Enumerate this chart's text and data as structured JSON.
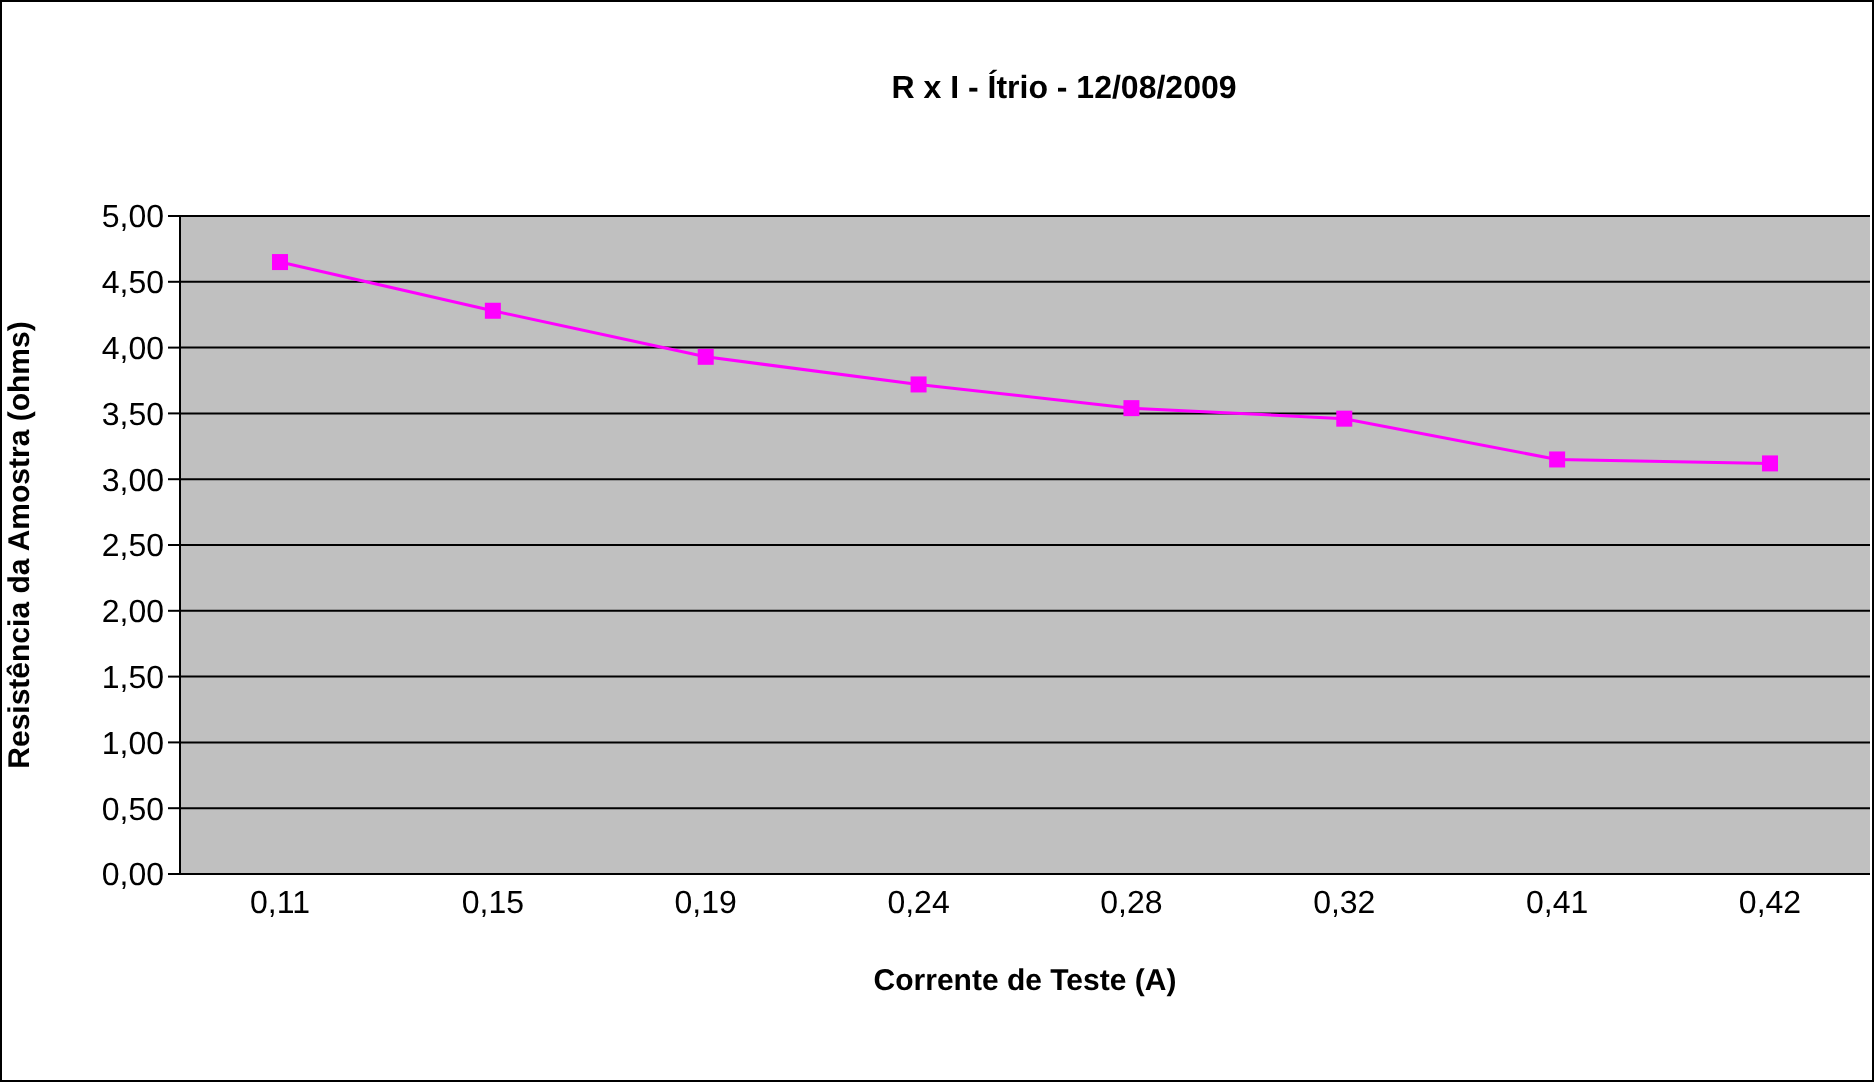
{
  "chart_data": {
    "type": "line",
    "title": "R x I - Ítrio - 12/08/2009",
    "xlabel": "Corrente de Teste (A)",
    "ylabel": "Resistência da Amostra (ohms)",
    "categories": [
      "0,11",
      "0,15",
      "0,19",
      "0,24",
      "0,28",
      "0,32",
      "0,41",
      "0,42"
    ],
    "series": [
      {
        "color": "#ff00ff",
        "values": [
          4.65,
          4.28,
          3.93,
          3.72,
          3.54,
          3.46,
          3.15,
          3.12
        ]
      }
    ],
    "ylim": [
      0,
      5
    ],
    "yticks": [
      {
        "value": 0,
        "label": "0,00"
      },
      {
        "value": 0.5,
        "label": "0,50"
      },
      {
        "value": 1,
        "label": "1,00"
      },
      {
        "value": 1.5,
        "label": "1,50"
      },
      {
        "value": 2,
        "label": "2,00"
      },
      {
        "value": 2.5,
        "label": "2,50"
      },
      {
        "value": 3,
        "label": "3,00"
      },
      {
        "value": 3.5,
        "label": "3,50"
      },
      {
        "value": 4,
        "label": "4,00"
      },
      {
        "value": 4.5,
        "label": "4,50"
      },
      {
        "value": 5,
        "label": "5,00"
      }
    ],
    "grid": "y",
    "legend": false,
    "marker": "square",
    "line_style": "solid"
  }
}
